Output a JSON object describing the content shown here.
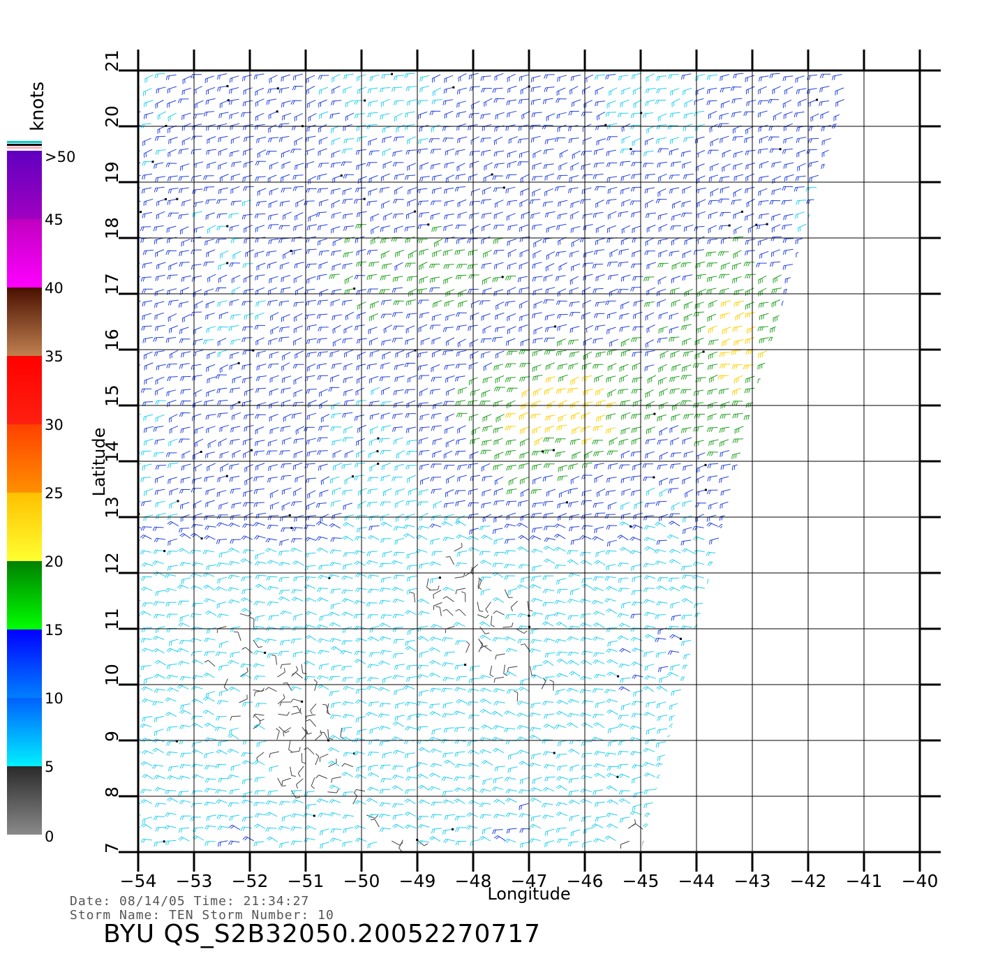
{
  "map": {
    "lon_label": "Longitude",
    "lat_label": "Latitude",
    "lon_ticks": [
      "-54",
      "-53",
      "-52",
      "-51",
      "-50",
      "-49",
      "-48",
      "-47",
      "-46",
      "-45",
      "-44",
      "-43",
      "-42",
      "-41",
      "-40"
    ],
    "lat_ticks": [
      "7",
      "8",
      "9",
      "10",
      "11",
      "12",
      "13",
      "14",
      "15",
      "16",
      "17",
      "18",
      "19",
      "20",
      "21"
    ],
    "lon_range": [
      -54,
      -40
    ],
    "lat_range": [
      7,
      21
    ],
    "grid": true,
    "swath_edge": [
      [
        -54,
        21
      ],
      [
        -41.2,
        21
      ],
      [
        -43,
        15
      ],
      [
        -44,
        11
      ],
      [
        -45,
        7
      ],
      [
        -54,
        7
      ]
    ]
  },
  "colorbar": {
    "unit": "knots",
    "labels": [
      ">50",
      "45",
      "40",
      "35",
      "30",
      "25",
      "20",
      "15",
      "10",
      "5",
      "0"
    ],
    "bands": [
      {
        "from": 0,
        "to": 5,
        "top": "#2a2a2a",
        "bottom": "#8a8a8a"
      },
      {
        "from": 5,
        "to": 10,
        "top": "#0060ff",
        "bottom": "#00f0ff"
      },
      {
        "from": 10,
        "to": 15,
        "top": "#0000ff",
        "bottom": "#0080ff"
      },
      {
        "from": 15,
        "to": 20,
        "top": "#008000",
        "bottom": "#00ff00"
      },
      {
        "from": 20,
        "to": 25,
        "top": "#ffc000",
        "bottom": "#ffff30"
      },
      {
        "from": 25,
        "to": 30,
        "top": "#ff4000",
        "bottom": "#ff9000"
      },
      {
        "from": 30,
        "to": 35,
        "top": "#ff0000",
        "bottom": "#ff2010"
      },
      {
        "from": 35,
        "to": 40,
        "top": "#4a1000",
        "bottom": "#c08050"
      },
      {
        "from": 40,
        "to": 45,
        "top": "#c000c0",
        "bottom": "#ff00ff"
      },
      {
        "from": 45,
        "to": 50,
        "top": "#6000c0",
        "bottom": "#a000c0"
      }
    ],
    "cap_colors": [
      "#00d0d0",
      "#000000",
      "#ffb0c0"
    ]
  },
  "wind_colors": {
    "calm": "#404040",
    "light": "#20d0f0",
    "moderate": "#2040e0",
    "fresh": "#20a020",
    "strong": "#ffd000",
    "gale": "#ff4000",
    "rain_flag": "#000000"
  },
  "wind_regions": [
    {
      "name": "calm-1",
      "center": [
        -51,
        9
      ],
      "radius": [
        1.2,
        1.6
      ],
      "speed": 3
    },
    {
      "name": "calm-2",
      "center": [
        -48.3,
        11.5
      ],
      "radius": [
        1.6,
        1.4
      ],
      "speed": 4
    },
    {
      "name": "strong-1",
      "center": [
        -46.2,
        15
      ],
      "radius": [
        2.4,
        1.4
      ],
      "speed": 23
    },
    {
      "name": "strong-2",
      "center": [
        -43.2,
        16.2
      ],
      "radius": [
        1.2,
        2.4
      ],
      "speed": 22
    },
    {
      "name": "fresh-1",
      "center": [
        -48.5,
        17.5
      ],
      "radius": [
        3.5,
        1.5
      ],
      "speed": 16
    }
  ],
  "footer": {
    "date_line": "Date: 08/14/05   Time: 21:34:27",
    "storm_line": "Storm Name: TEN   Storm Number: 10",
    "title": "BYU  QS_S2B32050.20052270717"
  }
}
